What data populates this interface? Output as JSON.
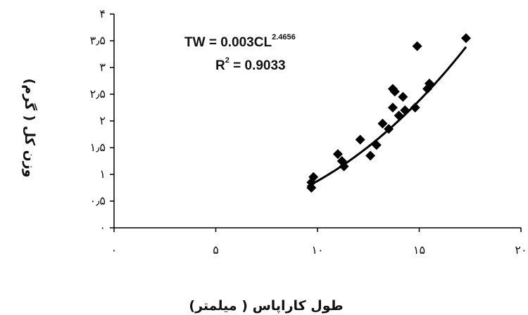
{
  "chart_data": {
    "type": "scatter",
    "title": "",
    "xlabel": "طول کاراپاس ( میلمتر)",
    "ylabel": "وزن کل ( گرم)",
    "xlim": [
      0,
      20
    ],
    "ylim": [
      0,
      4
    ],
    "x_ticks": [
      0,
      5,
      10,
      15,
      20
    ],
    "x_tick_labels": [
      "۰",
      "۵",
      "۱۰",
      "۱۵",
      "۲۰"
    ],
    "y_ticks": [
      0,
      0.5,
      1,
      1.5,
      2,
      2.5,
      3,
      3.5,
      4
    ],
    "y_tick_labels": [
      "۰",
      "۰٫۵",
      "۱",
      "۱٫۵",
      "۲",
      "۲٫۵",
      "۳",
      "۳٫۵",
      "۴"
    ],
    "grid": false,
    "legend": "none",
    "series": [
      {
        "marker": "diamond",
        "color": "#000000",
        "points": [
          [
            9.7,
            0.75
          ],
          [
            9.7,
            0.85
          ],
          [
            9.8,
            0.95
          ],
          [
            11.0,
            1.38
          ],
          [
            11.2,
            1.25
          ],
          [
            11.3,
            1.15
          ],
          [
            12.1,
            1.65
          ],
          [
            12.6,
            1.35
          ],
          [
            12.9,
            1.55
          ],
          [
            13.2,
            1.95
          ],
          [
            13.5,
            1.85
          ],
          [
            13.7,
            2.25
          ],
          [
            13.7,
            2.6
          ],
          [
            13.8,
            2.55
          ],
          [
            14.0,
            2.1
          ],
          [
            14.2,
            2.45
          ],
          [
            14.3,
            2.2
          ],
          [
            14.8,
            2.25
          ],
          [
            14.9,
            3.4
          ],
          [
            15.4,
            2.6
          ],
          [
            15.5,
            2.7
          ],
          [
            17.3,
            3.55
          ]
        ]
      }
    ],
    "trendline": {
      "type": "power",
      "a": 0.003,
      "b": 2.4656,
      "x_from": 9.5,
      "x_to": 17.3,
      "color": "#000000"
    },
    "annotations": {
      "equation_text": "TW = 0.003CL",
      "equation_sup": "2.4656",
      "r2_label": "R",
      "r2_sup": "2",
      "r2_value": " = 0.9033"
    }
  }
}
